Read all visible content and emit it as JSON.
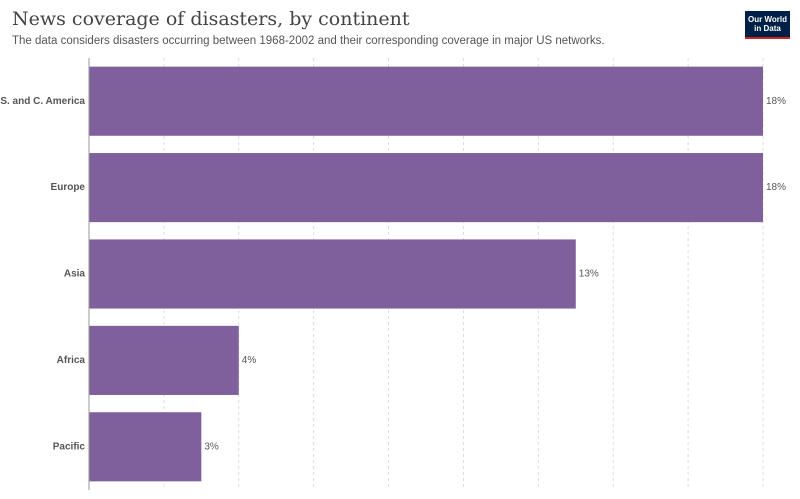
{
  "header": {
    "title": "News coverage of disasters, by continent",
    "subtitle": "The data considers disasters occurring between 1968-2002 and their corresponding coverage in major US networks.",
    "logo": "Our World in Data"
  },
  "colors": {
    "bar": "#7f5f9c",
    "grid": "#dddddd",
    "axis": "#999999",
    "logo_bg": "#002147",
    "logo_accent": "#ce261e"
  },
  "chart_data": {
    "type": "bar",
    "orientation": "horizontal",
    "title": "News coverage of disasters, by continent",
    "subtitle": "The data considers disasters occurring between 1968-2002 and their corresponding coverage in major US networks.",
    "categories": [
      "S. and C. America",
      "Europe",
      "Asia",
      "Africa",
      "Pacific"
    ],
    "values": [
      18,
      18,
      13,
      4,
      3
    ],
    "value_labels": [
      "18%",
      "18%",
      "13%",
      "4%",
      "3%"
    ],
    "unit": "%",
    "xlim": [
      0,
      18
    ],
    "grid": true
  }
}
